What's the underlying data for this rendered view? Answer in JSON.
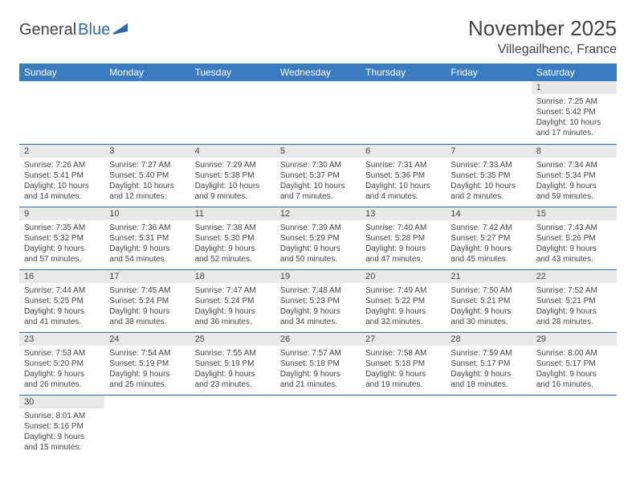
{
  "logo": {
    "word1": "General",
    "word2": "Blue"
  },
  "title": "November 2025",
  "location": "Villegailhenc, France",
  "colors": {
    "header_bg": "#3a7cbf",
    "rule": "#2f6ba8",
    "daystrip": "#e9e9e9",
    "text": "#434343",
    "logo_blue": "#2f6ba8"
  },
  "weekdays": [
    "Sunday",
    "Monday",
    "Tuesday",
    "Wednesday",
    "Thursday",
    "Friday",
    "Saturday"
  ],
  "weeks": [
    [
      null,
      null,
      null,
      null,
      null,
      null,
      {
        "n": "1",
        "sunrise": "Sunrise: 7:25 AM",
        "sunset": "Sunset: 5:42 PM",
        "day": "Daylight: 10 hours and 17 minutes."
      }
    ],
    [
      {
        "n": "2",
        "sunrise": "Sunrise: 7:26 AM",
        "sunset": "Sunset: 5:41 PM",
        "day": "Daylight: 10 hours and 14 minutes."
      },
      {
        "n": "3",
        "sunrise": "Sunrise: 7:27 AM",
        "sunset": "Sunset: 5:40 PM",
        "day": "Daylight: 10 hours and 12 minutes."
      },
      {
        "n": "4",
        "sunrise": "Sunrise: 7:29 AM",
        "sunset": "Sunset: 5:38 PM",
        "day": "Daylight: 10 hours and 9 minutes."
      },
      {
        "n": "5",
        "sunrise": "Sunrise: 7:30 AM",
        "sunset": "Sunset: 5:37 PM",
        "day": "Daylight: 10 hours and 7 minutes."
      },
      {
        "n": "6",
        "sunrise": "Sunrise: 7:31 AM",
        "sunset": "Sunset: 5:36 PM",
        "day": "Daylight: 10 hours and 4 minutes."
      },
      {
        "n": "7",
        "sunrise": "Sunrise: 7:33 AM",
        "sunset": "Sunset: 5:35 PM",
        "day": "Daylight: 10 hours and 2 minutes."
      },
      {
        "n": "8",
        "sunrise": "Sunrise: 7:34 AM",
        "sunset": "Sunset: 5:34 PM",
        "day": "Daylight: 9 hours and 59 minutes."
      }
    ],
    [
      {
        "n": "9",
        "sunrise": "Sunrise: 7:35 AM",
        "sunset": "Sunset: 5:32 PM",
        "day": "Daylight: 9 hours and 57 minutes."
      },
      {
        "n": "10",
        "sunrise": "Sunrise: 7:36 AM",
        "sunset": "Sunset: 5:31 PM",
        "day": "Daylight: 9 hours and 54 minutes."
      },
      {
        "n": "11",
        "sunrise": "Sunrise: 7:38 AM",
        "sunset": "Sunset: 5:30 PM",
        "day": "Daylight: 9 hours and 52 minutes."
      },
      {
        "n": "12",
        "sunrise": "Sunrise: 7:39 AM",
        "sunset": "Sunset: 5:29 PM",
        "day": "Daylight: 9 hours and 50 minutes."
      },
      {
        "n": "13",
        "sunrise": "Sunrise: 7:40 AM",
        "sunset": "Sunset: 5:28 PM",
        "day": "Daylight: 9 hours and 47 minutes."
      },
      {
        "n": "14",
        "sunrise": "Sunrise: 7:42 AM",
        "sunset": "Sunset: 5:27 PM",
        "day": "Daylight: 9 hours and 45 minutes."
      },
      {
        "n": "15",
        "sunrise": "Sunrise: 7:43 AM",
        "sunset": "Sunset: 5:26 PM",
        "day": "Daylight: 9 hours and 43 minutes."
      }
    ],
    [
      {
        "n": "16",
        "sunrise": "Sunrise: 7:44 AM",
        "sunset": "Sunset: 5:25 PM",
        "day": "Daylight: 9 hours and 41 minutes."
      },
      {
        "n": "17",
        "sunrise": "Sunrise: 7:45 AM",
        "sunset": "Sunset: 5:24 PM",
        "day": "Daylight: 9 hours and 38 minutes."
      },
      {
        "n": "18",
        "sunrise": "Sunrise: 7:47 AM",
        "sunset": "Sunset: 5:24 PM",
        "day": "Daylight: 9 hours and 36 minutes."
      },
      {
        "n": "19",
        "sunrise": "Sunrise: 7:48 AM",
        "sunset": "Sunset: 5:23 PM",
        "day": "Daylight: 9 hours and 34 minutes."
      },
      {
        "n": "20",
        "sunrise": "Sunrise: 7:49 AM",
        "sunset": "Sunset: 5:22 PM",
        "day": "Daylight: 9 hours and 32 minutes."
      },
      {
        "n": "21",
        "sunrise": "Sunrise: 7:50 AM",
        "sunset": "Sunset: 5:21 PM",
        "day": "Daylight: 9 hours and 30 minutes."
      },
      {
        "n": "22",
        "sunrise": "Sunrise: 7:52 AM",
        "sunset": "Sunset: 5:21 PM",
        "day": "Daylight: 9 hours and 28 minutes."
      }
    ],
    [
      {
        "n": "23",
        "sunrise": "Sunrise: 7:53 AM",
        "sunset": "Sunset: 5:20 PM",
        "day": "Daylight: 9 hours and 26 minutes."
      },
      {
        "n": "24",
        "sunrise": "Sunrise: 7:54 AM",
        "sunset": "Sunset: 5:19 PM",
        "day": "Daylight: 9 hours and 25 minutes."
      },
      {
        "n": "25",
        "sunrise": "Sunrise: 7:55 AM",
        "sunset": "Sunset: 5:19 PM",
        "day": "Daylight: 9 hours and 23 minutes."
      },
      {
        "n": "26",
        "sunrise": "Sunrise: 7:57 AM",
        "sunset": "Sunset: 5:18 PM",
        "day": "Daylight: 9 hours and 21 minutes."
      },
      {
        "n": "27",
        "sunrise": "Sunrise: 7:58 AM",
        "sunset": "Sunset: 5:18 PM",
        "day": "Daylight: 9 hours and 19 minutes."
      },
      {
        "n": "28",
        "sunrise": "Sunrise: 7:59 AM",
        "sunset": "Sunset: 5:17 PM",
        "day": "Daylight: 9 hours and 18 minutes."
      },
      {
        "n": "29",
        "sunrise": "Sunrise: 8:00 AM",
        "sunset": "Sunset: 5:17 PM",
        "day": "Daylight: 9 hours and 16 minutes."
      }
    ],
    [
      {
        "n": "30",
        "sunrise": "Sunrise: 8:01 AM",
        "sunset": "Sunset: 5:16 PM",
        "day": "Daylight: 9 hours and 15 minutes."
      },
      null,
      null,
      null,
      null,
      null,
      null
    ]
  ]
}
